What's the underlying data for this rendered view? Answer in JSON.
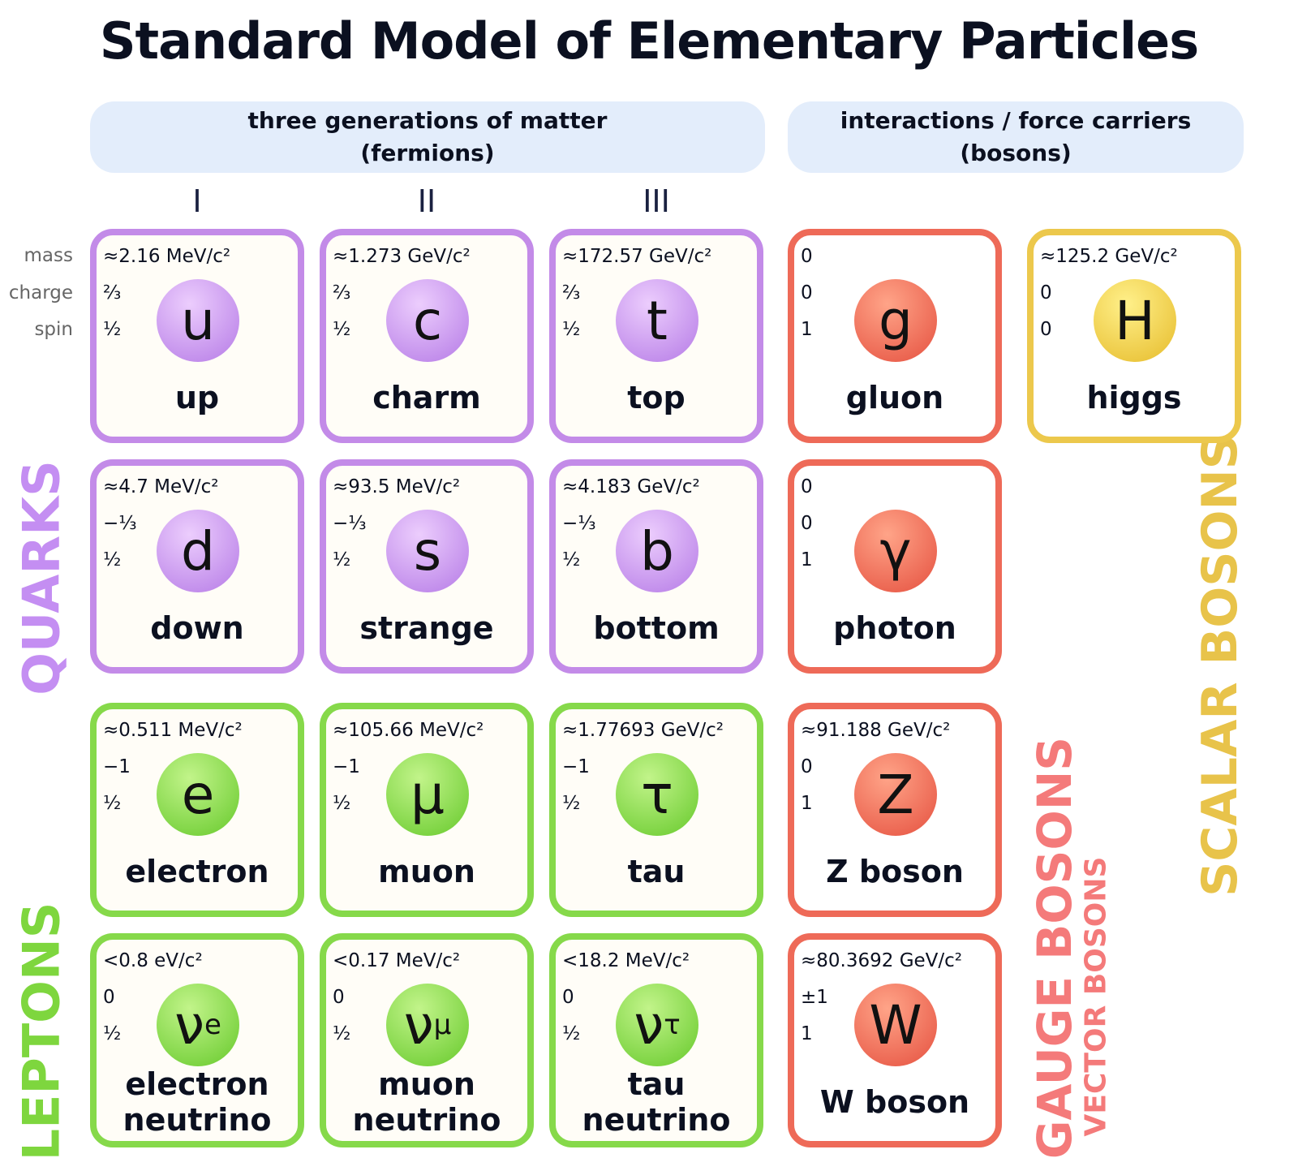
{
  "title": "Standard Model of Elementary Particles",
  "headers": [
    {
      "lines": [
        "three generations of matter",
        "(fermions)"
      ]
    },
    {
      "lines": [
        "interactions / force carriers",
        "(bosons)"
      ]
    }
  ],
  "generations": [
    "I",
    "II",
    "III"
  ],
  "property_labels": [
    "mass",
    "charge",
    "spin"
  ],
  "group_labels": {
    "quarks": "QUARKS",
    "leptons": "LEPTONS",
    "gauge": "GAUGE BOSONS",
    "vector": "VECTOR BOSONS",
    "scalar": "SCALAR BOSONS"
  },
  "particles": [
    {
      "kind": "quark",
      "mass": "≈2.16 MeV/c²",
      "charge": "⅔",
      "spin": "½",
      "symbol": "u",
      "name": "up"
    },
    {
      "kind": "quark",
      "mass": "≈1.273 GeV/c²",
      "charge": "⅔",
      "spin": "½",
      "symbol": "c",
      "name": "charm"
    },
    {
      "kind": "quark",
      "mass": "≈172.57 GeV/c²",
      "charge": "⅔",
      "spin": "½",
      "symbol": "t",
      "name": "top"
    },
    {
      "kind": "quark",
      "mass": "≈4.7 MeV/c²",
      "charge": "−⅓",
      "spin": "½",
      "symbol": "d",
      "name": "down"
    },
    {
      "kind": "quark",
      "mass": "≈93.5 MeV/c²",
      "charge": "−⅓",
      "spin": "½",
      "symbol": "s",
      "name": "strange"
    },
    {
      "kind": "quark",
      "mass": "≈4.183 GeV/c²",
      "charge": "−⅓",
      "spin": "½",
      "symbol": "b",
      "name": "bottom"
    },
    {
      "kind": "lepton",
      "mass": "≈0.511 MeV/c²",
      "charge": "−1",
      "spin": "½",
      "symbol": "e",
      "name": "electron"
    },
    {
      "kind": "lepton",
      "mass": "≈105.66 MeV/c²",
      "charge": "−1",
      "spin": "½",
      "symbol": "μ",
      "name": "muon"
    },
    {
      "kind": "lepton",
      "mass": "≈1.77693 GeV/c²",
      "charge": "−1",
      "spin": "½",
      "symbol": "τ",
      "name": "tau"
    },
    {
      "kind": "lepton",
      "mass": "<0.8 eV/c²",
      "charge": "0",
      "spin": "½",
      "symbol": "ν",
      "subscript": "e",
      "name": "electron neutrino"
    },
    {
      "kind": "lepton",
      "mass": "<0.17 MeV/c²",
      "charge": "0",
      "spin": "½",
      "symbol": "ν",
      "subscript": "μ",
      "name": "muon neutrino"
    },
    {
      "kind": "lepton",
      "mass": "<18.2 MeV/c²",
      "charge": "0",
      "spin": "½",
      "symbol": "ν",
      "subscript": "τ",
      "name": "tau neutrino"
    },
    {
      "kind": "gauge",
      "mass": "0",
      "charge": "0",
      "spin": "1",
      "symbol": "g",
      "name": "gluon"
    },
    {
      "kind": "gauge",
      "mass": "0",
      "charge": "0",
      "spin": "1",
      "symbol": "γ",
      "name": "photon"
    },
    {
      "kind": "gauge",
      "mass": "≈91.188 GeV/c²",
      "charge": "0",
      "spin": "1",
      "symbol": "Z",
      "name": "Z boson"
    },
    {
      "kind": "gauge",
      "mass": "≈80.3692 GeV/c²",
      "charge": "±1",
      "spin": "1",
      "symbol": "W",
      "name": "W boson"
    },
    {
      "kind": "scalar",
      "mass": "≈125.2 GeV/c²",
      "charge": "0",
      "spin": "0",
      "symbol": "H",
      "name": "higgs"
    }
  ]
}
